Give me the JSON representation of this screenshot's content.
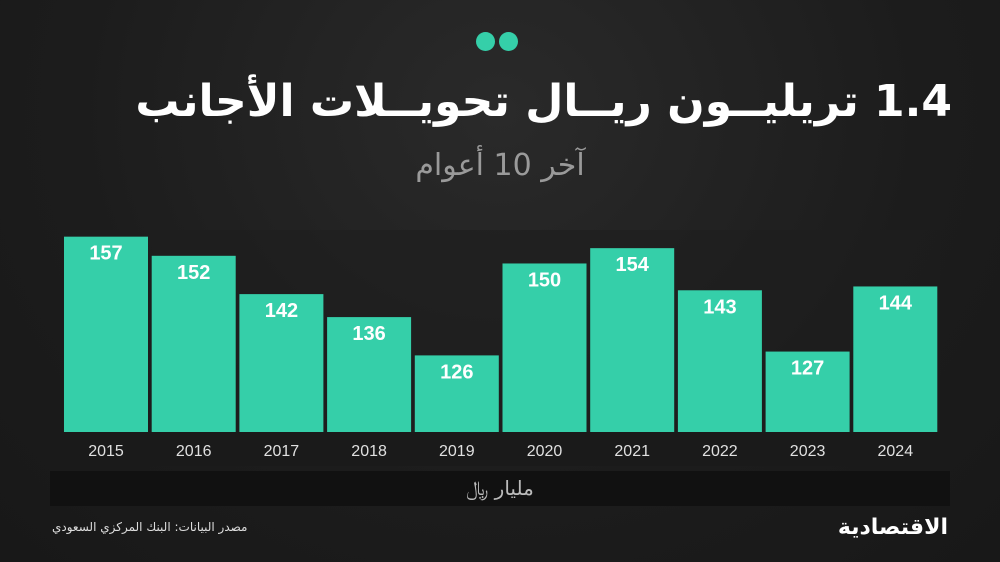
{
  "header": {
    "title": "1.4 تريليــون ريــال تحويــلات الأجانب",
    "subtitle": "آخر 10 أعوام"
  },
  "footer": {
    "unit": "مليار ﷼",
    "source": "مصدر البيانات: البنك المركزي السعودي",
    "logo": "الاقتصادية"
  },
  "colors": {
    "bar": "#35cfa9",
    "accent": "#35cfa9",
    "background": "#1c1c1c"
  },
  "chart_data": {
    "type": "bar",
    "categories": [
      "2015",
      "2016",
      "2017",
      "2018",
      "2019",
      "2020",
      "2021",
      "2022",
      "2023",
      "2024"
    ],
    "values": [
      157,
      152,
      142,
      136,
      126,
      150,
      154,
      143,
      127,
      144
    ],
    "title": "1.4 تريليــون ريــال تحويــلات الأجانب",
    "subtitle": "آخر 10 أعوام",
    "xlabel": "",
    "ylabel": "مليار ﷼",
    "ylim": [
      106,
      159
    ],
    "grid": false
  }
}
